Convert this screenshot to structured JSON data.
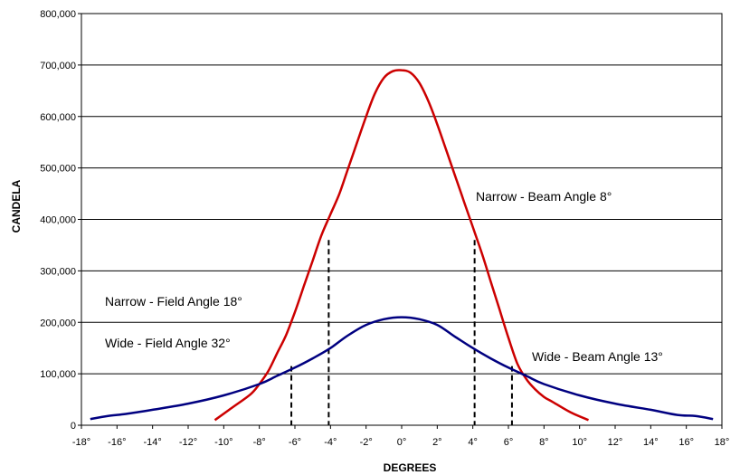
{
  "chart_data": {
    "type": "line",
    "xlabel": "DEGREES",
    "ylabel": "CANDELA",
    "xlim": [
      -18,
      18
    ],
    "ylim": [
      0,
      800000
    ],
    "grid": "horizontal",
    "y_ticks": [
      0,
      100000,
      200000,
      300000,
      400000,
      500000,
      600000,
      700000,
      800000
    ],
    "y_tick_labels": [
      "0",
      "100,000",
      "200,000",
      "300,000",
      "400,000",
      "500,000",
      "600,000",
      "700,000",
      "800,000"
    ],
    "x_ticks": [
      -18,
      -16,
      -14,
      -12,
      -10,
      -8,
      -6,
      -4,
      -2,
      0,
      2,
      4,
      6,
      8,
      10,
      12,
      14,
      16,
      18
    ],
    "x_tick_labels": [
      "-18°",
      "-16°",
      "-14°",
      "-12°",
      "-10°",
      "-8°",
      "-6°",
      "-4°",
      "-2°",
      "0°",
      "2°",
      "4°",
      "6°",
      "8°",
      "10°",
      "12°",
      "14°",
      "16°",
      "18°"
    ],
    "series": [
      {
        "color": "#cc0000",
        "x": [
          -10.5,
          -9.5,
          -8.5,
          -8,
          -7.5,
          -7,
          -6.5,
          -6,
          -5.5,
          -5,
          -4.5,
          -4,
          -3.5,
          -3,
          -2.5,
          -2,
          -1.5,
          -1,
          -0.5,
          0,
          0.5,
          1,
          1.5,
          2,
          2.5,
          3,
          3.5,
          4,
          4.5,
          5,
          5.5,
          6,
          6.5,
          7,
          7.5,
          8,
          8.5,
          9.5,
          10.5
        ],
        "y": [
          10000,
          35000,
          60000,
          80000,
          105000,
          140000,
          175000,
          220000,
          270000,
          320000,
          370000,
          410000,
          450000,
          500000,
          550000,
          600000,
          645000,
          675000,
          688000,
          690000,
          685000,
          665000,
          630000,
          585000,
          535000,
          485000,
          435000,
          385000,
          335000,
          280000,
          225000,
          170000,
          120000,
          90000,
          70000,
          55000,
          45000,
          25000,
          10000
        ]
      },
      {
        "color": "#000080",
        "x": [
          -17.5,
          -16.5,
          -15.5,
          -14,
          -12,
          -10,
          -8,
          -7,
          -6,
          -5,
          -4,
          -3,
          -2,
          -1,
          0,
          1,
          2,
          3,
          4,
          5,
          6,
          7,
          8,
          10,
          12,
          14,
          15.5,
          16.5,
          17.5
        ],
        "y": [
          12000,
          18000,
          22000,
          30000,
          42000,
          58000,
          80000,
          96000,
          112000,
          130000,
          150000,
          175000,
          195000,
          206000,
          210000,
          206000,
          195000,
          172000,
          150000,
          130000,
          112000,
          96000,
          80000,
          58000,
          42000,
          30000,
          20000,
          18000,
          12000
        ]
      }
    ],
    "reference_lines": [
      {
        "x": -6.2,
        "y": 115000
      },
      {
        "x": -4.1,
        "y": 360000
      },
      {
        "x": 4.1,
        "y": 360000
      },
      {
        "x": 6.2,
        "y": 115000
      }
    ],
    "annotations": [
      "Narrow - Beam Angle 8°",
      "Narrow - Field Angle 18°",
      "Wide - Field Angle 32°",
      "Wide - Beam Angle 13°"
    ]
  }
}
